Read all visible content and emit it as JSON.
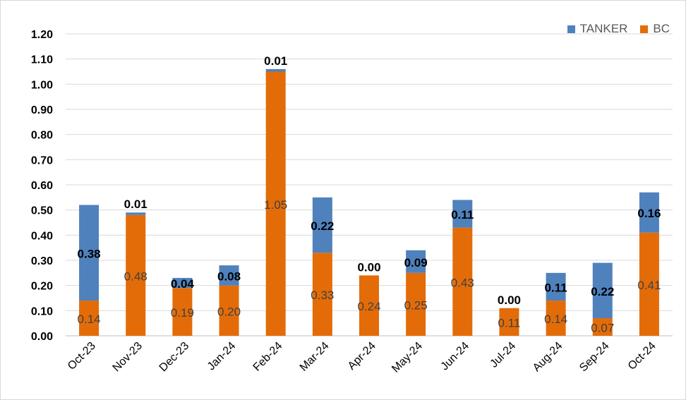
{
  "chart_data": {
    "type": "bar",
    "stacked": true,
    "categories": [
      "Oct-23",
      "Nov-23",
      "Dec-23",
      "Jan-24",
      "Feb-24",
      "Mar-24",
      "Apr-24",
      "May-24",
      "Jun-24",
      "Jul-24",
      "Aug-24",
      "Sep-24",
      "Oct-24"
    ],
    "series": [
      {
        "name": "BC",
        "color": "#E36C09",
        "values": [
          0.14,
          0.48,
          0.19,
          0.2,
          1.05,
          0.33,
          0.24,
          0.25,
          0.43,
          0.11,
          0.14,
          0.07,
          0.41
        ],
        "labels": [
          "0.14",
          "0.48",
          "0.19",
          "0.20",
          "1.05",
          "0.33",
          "0.24",
          "0.25",
          "0.43",
          "0.11",
          "0.14",
          "0.07",
          "0.41"
        ]
      },
      {
        "name": "TANKER",
        "color": "#4F81BD",
        "values": [
          0.38,
          0.01,
          0.04,
          0.08,
          0.01,
          0.22,
          0.0,
          0.09,
          0.11,
          0.0,
          0.11,
          0.22,
          0.16
        ],
        "labels": [
          "0.38",
          "0.01",
          "0.04",
          "0.08",
          "0.01",
          "0.22",
          "0.00",
          "0.09",
          "0.11",
          "0.00",
          "0.11",
          "0.22",
          "0.16"
        ]
      }
    ],
    "ylim": [
      0,
      1.2
    ],
    "yticks": [
      "0.00",
      "0.10",
      "0.20",
      "0.30",
      "0.40",
      "0.50",
      "0.60",
      "0.70",
      "0.80",
      "0.90",
      "1.00",
      "1.10",
      "1.20"
    ],
    "grid": true,
    "legend": "top-right",
    "title": "",
    "xlabel": "",
    "ylabel": ""
  }
}
